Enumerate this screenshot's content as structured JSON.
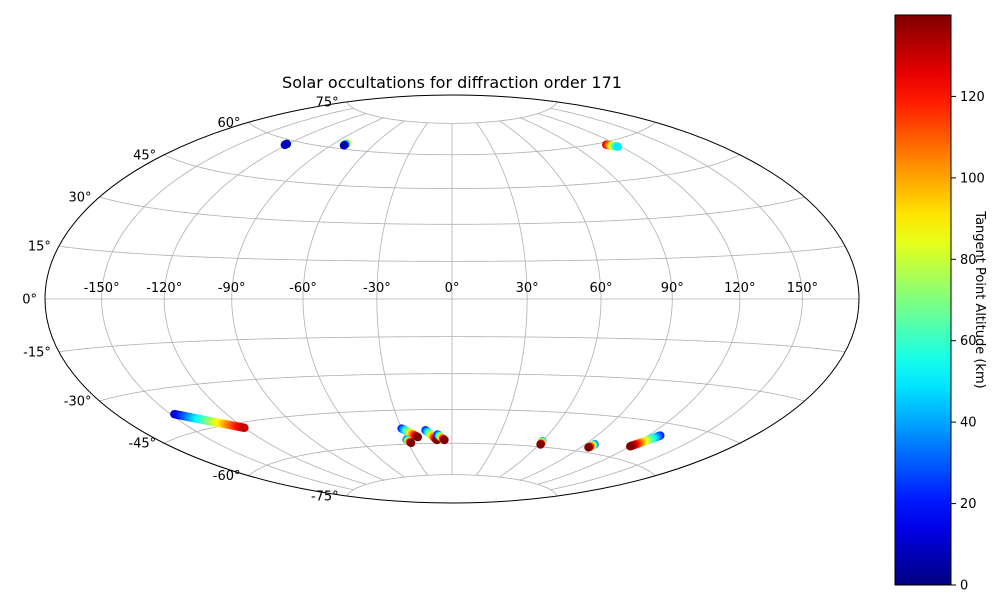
{
  "chart_data": {
    "type": "scatter",
    "projection": "hammer",
    "title": "Solar occultations for diffraction order 171",
    "xlabel": "",
    "ylabel": "",
    "xlim": [
      -180,
      180
    ],
    "ylim": [
      -90,
      90
    ],
    "grid": true,
    "lon_ticks": [
      -150,
      -120,
      -90,
      -60,
      -30,
      0,
      30,
      60,
      90,
      120,
      150
    ],
    "lon_tick_labels": [
      "-150°",
      "-120°",
      "-90°",
      "-60°",
      "-30°",
      "0°",
      "30°",
      "60°",
      "90°",
      "120°",
      "150°"
    ],
    "lat_ticks": [
      75,
      60,
      45,
      30,
      15,
      0,
      -15,
      -30,
      -45,
      -60,
      -75
    ],
    "lat_tick_labels": [
      "75°",
      "60°",
      "45°",
      "30°",
      "15°",
      "0°",
      "-15°",
      "-30°",
      "-45°",
      "-60°",
      "-75°"
    ],
    "colorbar": {
      "label": "Tangent Point Altitude (km)",
      "colormap": "jet",
      "range": [
        0,
        140
      ],
      "ticks": [
        0,
        20,
        40,
        60,
        80,
        100,
        120
      ],
      "tick_labels": [
        "0",
        "20",
        "40",
        "60",
        "80",
        "100",
        "120"
      ]
    },
    "series": [
      {
        "lon_start": -121,
        "lat_start": 58.5,
        "lon_end": -121,
        "lat_end": 58,
        "alt_start": 0,
        "alt_end": 10
      },
      {
        "lon_start": -81,
        "lat_start": 62.5,
        "lon_end": -81,
        "lat_end": 61.5,
        "alt_start": 90,
        "alt_end": 5
      },
      {
        "lon_start": 113,
        "lat_start": 59,
        "lon_end": 118,
        "lat_end": 57.5,
        "alt_start": 130,
        "alt_end": 50
      },
      {
        "lon_start": -148,
        "lat_start": -38.5,
        "lon_end": -120,
        "lat_end": -47,
        "alt_start": 10,
        "alt_end": 130
      },
      {
        "lon_start": -30,
        "lat_start": -53,
        "lon_end": -22,
        "lat_end": -57,
        "alt_start": 20,
        "alt_end": 140
      },
      {
        "lon_start": -30,
        "lat_start": -58,
        "lon_end": -28,
        "lat_end": -59.5,
        "alt_start": 30,
        "alt_end": 140
      },
      {
        "lon_start": -16,
        "lat_start": -54,
        "lon_end": -10,
        "lat_end": -58.5,
        "alt_start": 20,
        "alt_end": 140
      },
      {
        "lon_start": -9,
        "lat_start": -56,
        "lon_end": -5,
        "lat_end": -58.5,
        "alt_start": 20,
        "alt_end": 140
      },
      {
        "lon_start": 60,
        "lat_start": -57.5,
        "lon_end": 61,
        "lat_end": -59,
        "alt_start": 40,
        "alt_end": 140
      },
      {
        "lon_start": 96,
        "lat_start": -56.5,
        "lon_end": 95,
        "lat_end": -58,
        "alt_start": 30,
        "alt_end": 140
      },
      {
        "lon_start": 127,
        "lat_start": -49.5,
        "lon_end": 120,
        "lat_end": -55,
        "alt_start": 20,
        "alt_end": 140
      }
    ]
  }
}
